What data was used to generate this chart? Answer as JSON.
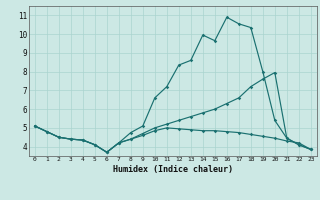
{
  "xlabel": "Humidex (Indice chaleur)",
  "xlim": [
    -0.5,
    23.5
  ],
  "ylim": [
    3.5,
    11.5
  ],
  "xticks": [
    0,
    1,
    2,
    3,
    4,
    5,
    6,
    7,
    8,
    9,
    10,
    11,
    12,
    13,
    14,
    15,
    16,
    17,
    18,
    19,
    20,
    21,
    22,
    23
  ],
  "yticks": [
    4,
    5,
    6,
    7,
    8,
    9,
    10,
    11
  ],
  "bg_color": "#cce8e4",
  "grid_color": "#aad4cf",
  "line_color": "#1a7070",
  "line1_x": [
    0,
    1,
    2,
    3,
    4,
    5,
    6,
    7,
    8,
    9,
    10,
    11,
    12,
    13,
    14,
    15,
    16,
    17,
    18,
    19,
    20,
    21,
    22,
    23
  ],
  "line1_y": [
    5.1,
    4.8,
    4.5,
    4.4,
    4.35,
    4.1,
    3.7,
    4.2,
    4.75,
    5.1,
    6.6,
    7.2,
    8.35,
    8.6,
    9.95,
    9.65,
    10.9,
    10.55,
    10.35,
    8.0,
    5.4,
    4.45,
    4.1,
    3.85
  ],
  "line2_x": [
    0,
    1,
    2,
    3,
    4,
    5,
    6,
    7,
    8,
    9,
    10,
    11,
    12,
    13,
    14,
    15,
    16,
    17,
    18,
    19,
    20,
    21,
    22,
    23
  ],
  "line2_y": [
    5.1,
    4.8,
    4.5,
    4.4,
    4.35,
    4.1,
    3.7,
    4.2,
    4.4,
    4.7,
    5.0,
    5.2,
    5.4,
    5.6,
    5.8,
    6.0,
    6.3,
    6.6,
    7.2,
    7.6,
    7.95,
    4.45,
    4.1,
    3.85
  ],
  "line3_x": [
    0,
    1,
    2,
    3,
    4,
    5,
    6,
    7,
    8,
    9,
    10,
    11,
    12,
    13,
    14,
    15,
    16,
    17,
    18,
    19,
    20,
    21,
    22,
    23
  ],
  "line3_y": [
    5.1,
    4.8,
    4.5,
    4.4,
    4.35,
    4.1,
    3.7,
    4.2,
    4.4,
    4.6,
    4.85,
    5.0,
    4.95,
    4.9,
    4.85,
    4.85,
    4.8,
    4.75,
    4.65,
    4.55,
    4.45,
    4.3,
    4.2,
    3.85
  ]
}
